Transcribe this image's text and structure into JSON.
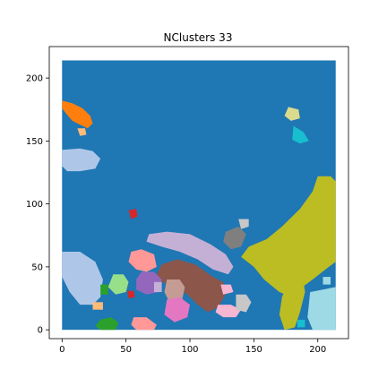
{
  "chart_data": {
    "type": "heatmap",
    "title": "NClusters 33",
    "xlabel": "",
    "ylabel": "",
    "xlim": [
      -10,
      224
    ],
    "ylim": [
      -7,
      225
    ],
    "xticks": [
      0,
      50,
      100,
      150,
      200
    ],
    "yticks": [
      0,
      50,
      100,
      150,
      200
    ],
    "grid": false,
    "image_extent": [
      0,
      214,
      0,
      214
    ],
    "background_cluster": {
      "color": "#1f77b4"
    },
    "clusters": [
      {
        "label": "orange",
        "color": "#ff7f0e",
        "polygon": [
          [
            0,
            182
          ],
          [
            8,
            180
          ],
          [
            16,
            176
          ],
          [
            22,
            170
          ],
          [
            24,
            164
          ],
          [
            20,
            160
          ],
          [
            14,
            163
          ],
          [
            8,
            166
          ],
          [
            3,
            172
          ],
          [
            0,
            176
          ]
        ]
      },
      {
        "label": "light-orange",
        "color": "#ffbb78",
        "polygon": [
          [
            12,
            160
          ],
          [
            18,
            160
          ],
          [
            19,
            155
          ],
          [
            14,
            154
          ]
        ]
      },
      {
        "label": "light-blue",
        "color": "#aec7e8",
        "polygon": [
          [
            0,
            143
          ],
          [
            14,
            144
          ],
          [
            24,
            142
          ],
          [
            30,
            136
          ],
          [
            26,
            128
          ],
          [
            14,
            126
          ],
          [
            4,
            126
          ],
          [
            0,
            130
          ]
        ]
      },
      {
        "label": "light-blue-2",
        "color": "#aec7e8",
        "polygon": [
          [
            0,
            62
          ],
          [
            14,
            62
          ],
          [
            26,
            54
          ],
          [
            32,
            40
          ],
          [
            30,
            26
          ],
          [
            24,
            20
          ],
          [
            14,
            20
          ],
          [
            6,
            30
          ],
          [
            0,
            42
          ]
        ]
      },
      {
        "label": "khaki",
        "color": "#dbdb8d",
        "polygon": [
          [
            177,
            177
          ],
          [
            185,
            175
          ],
          [
            186,
            168
          ],
          [
            179,
            166
          ],
          [
            174,
            170
          ]
        ]
      },
      {
        "label": "cyan",
        "color": "#17becf",
        "polygon": [
          [
            181,
            162
          ],
          [
            189,
            157
          ],
          [
            193,
            150
          ],
          [
            186,
            148
          ],
          [
            180,
            151
          ]
        ]
      },
      {
        "label": "red",
        "color": "#d62728",
        "polygon": [
          [
            52,
            95
          ],
          [
            58,
            96
          ],
          [
            59,
            90
          ],
          [
            54,
            88
          ]
        ]
      },
      {
        "label": "red-2",
        "color": "#d62728",
        "polygon": [
          [
            51,
            31
          ],
          [
            56,
            31
          ],
          [
            57,
            26
          ],
          [
            52,
            25
          ]
        ]
      },
      {
        "label": "lavender",
        "color": "#c5b0d5",
        "polygon": [
          [
            68,
            76
          ],
          [
            82,
            78
          ],
          [
            100,
            76
          ],
          [
            116,
            68
          ],
          [
            128,
            60
          ],
          [
            134,
            50
          ],
          [
            130,
            44
          ],
          [
            118,
            48
          ],
          [
            106,
            56
          ],
          [
            92,
            62
          ],
          [
            78,
            66
          ],
          [
            66,
            70
          ]
        ]
      },
      {
        "label": "gray",
        "color": "#7f7f7f",
        "polygon": [
          [
            128,
            78
          ],
          [
            138,
            82
          ],
          [
            144,
            76
          ],
          [
            140,
            66
          ],
          [
            132,
            64
          ],
          [
            126,
            70
          ]
        ]
      },
      {
        "label": "light-gray",
        "color": "#c7c7c7",
        "polygon": [
          [
            138,
            88
          ],
          [
            146,
            88
          ],
          [
            146,
            82
          ],
          [
            140,
            80
          ]
        ]
      },
      {
        "label": "olive",
        "color": "#bcbd22",
        "polygon": [
          [
            214,
            118
          ],
          [
            210,
            122
          ],
          [
            200,
            122
          ],
          [
            196,
            110
          ],
          [
            186,
            96
          ],
          [
            172,
            82
          ],
          [
            160,
            72
          ],
          [
            146,
            66
          ],
          [
            140,
            58
          ],
          [
            150,
            50
          ],
          [
            158,
            40
          ],
          [
            170,
            30
          ],
          [
            180,
            26
          ],
          [
            188,
            34
          ],
          [
            196,
            40
          ],
          [
            206,
            48
          ],
          [
            214,
            54
          ]
        ]
      },
      {
        "label": "olive-2",
        "color": "#bcbd22",
        "polygon": [
          [
            180,
            40
          ],
          [
            188,
            44
          ],
          [
            190,
            30
          ],
          [
            186,
            14
          ],
          [
            182,
            2
          ],
          [
            174,
            0
          ],
          [
            170,
            12
          ],
          [
            172,
            26
          ],
          [
            176,
            36
          ]
        ]
      },
      {
        "label": "salmon",
        "color": "#ff9896",
        "polygon": [
          [
            54,
            62
          ],
          [
            62,
            64
          ],
          [
            72,
            60
          ],
          [
            74,
            50
          ],
          [
            66,
            46
          ],
          [
            58,
            48
          ],
          [
            52,
            54
          ]
        ]
      },
      {
        "label": "brown",
        "color": "#8c564b",
        "polygon": [
          [
            78,
            52
          ],
          [
            90,
            56
          ],
          [
            104,
            52
          ],
          [
            118,
            42
          ],
          [
            126,
            38
          ],
          [
            128,
            28
          ],
          [
            122,
            18
          ],
          [
            114,
            14
          ],
          [
            106,
            20
          ],
          [
            98,
            28
          ],
          [
            88,
            34
          ],
          [
            78,
            38
          ],
          [
            74,
            44
          ]
        ]
      },
      {
        "label": "purple",
        "color": "#9467bd",
        "polygon": [
          [
            62,
            46
          ],
          [
            72,
            46
          ],
          [
            78,
            40
          ],
          [
            76,
            30
          ],
          [
            66,
            28
          ],
          [
            58,
            32
          ],
          [
            58,
            40
          ]
        ]
      },
      {
        "label": "light-green",
        "color": "#98df8a",
        "polygon": [
          [
            40,
            44
          ],
          [
            48,
            44
          ],
          [
            52,
            38
          ],
          [
            50,
            30
          ],
          [
            42,
            28
          ],
          [
            36,
            34
          ]
        ]
      },
      {
        "label": "tan",
        "color": "#c49c94",
        "polygon": [
          [
            82,
            40
          ],
          [
            92,
            40
          ],
          [
            96,
            34
          ],
          [
            94,
            24
          ],
          [
            84,
            22
          ],
          [
            80,
            30
          ]
        ]
      },
      {
        "label": "pink",
        "color": "#e377c2",
        "polygon": [
          [
            82,
            24
          ],
          [
            92,
            26
          ],
          [
            100,
            20
          ],
          [
            98,
            10
          ],
          [
            88,
            6
          ],
          [
            80,
            12
          ]
        ]
      },
      {
        "label": "pink-2",
        "color": "#f7b6d2",
        "polygon": [
          [
            122,
            20
          ],
          [
            132,
            20
          ],
          [
            140,
            16
          ],
          [
            136,
            10
          ],
          [
            126,
            10
          ],
          [
            120,
            14
          ]
        ]
      },
      {
        "label": "pink-3",
        "color": "#f7b6d2",
        "polygon": [
          [
            124,
            36
          ],
          [
            132,
            36
          ],
          [
            134,
            30
          ],
          [
            126,
            28
          ]
        ]
      },
      {
        "label": "light-gray-2",
        "color": "#c7c7c7",
        "polygon": [
          [
            136,
            28
          ],
          [
            144,
            28
          ],
          [
            148,
            22
          ],
          [
            144,
            14
          ],
          [
            136,
            16
          ]
        ]
      },
      {
        "label": "green",
        "color": "#2ca02c",
        "polygon": [
          [
            30,
            8
          ],
          [
            38,
            10
          ],
          [
            44,
            6
          ],
          [
            42,
            0
          ],
          [
            30,
            0
          ],
          [
            26,
            3
          ]
        ]
      },
      {
        "label": "green-2",
        "color": "#2ca02c",
        "polygon": [
          [
            30,
            36
          ],
          [
            36,
            36
          ],
          [
            36,
            28
          ],
          [
            30,
            28
          ]
        ]
      },
      {
        "label": "peach",
        "color": "#ffbb78",
        "polygon": [
          [
            24,
            22
          ],
          [
            32,
            22
          ],
          [
            32,
            16
          ],
          [
            24,
            16
          ]
        ]
      },
      {
        "label": "pink-4",
        "color": "#ff9896",
        "polygon": [
          [
            56,
            10
          ],
          [
            66,
            10
          ],
          [
            74,
            4
          ],
          [
            72,
            0
          ],
          [
            58,
            0
          ],
          [
            54,
            4
          ]
        ]
      },
      {
        "label": "sky",
        "color": "#9edae5",
        "polygon": [
          [
            194,
            30
          ],
          [
            204,
            32
          ],
          [
            214,
            34
          ],
          [
            214,
            0
          ],
          [
            196,
            0
          ],
          [
            192,
            10
          ]
        ]
      },
      {
        "label": "sky-2",
        "color": "#9edae5",
        "polygon": [
          [
            204,
            42
          ],
          [
            210,
            42
          ],
          [
            210,
            36
          ],
          [
            204,
            36
          ]
        ]
      },
      {
        "label": "cyan-2",
        "color": "#17becf",
        "polygon": [
          [
            184,
            8
          ],
          [
            190,
            8
          ],
          [
            190,
            2
          ],
          [
            184,
            2
          ]
        ]
      },
      {
        "label": "violet-small",
        "color": "#c5b0d5",
        "polygon": [
          [
            72,
            38
          ],
          [
            78,
            38
          ],
          [
            78,
            30
          ],
          [
            72,
            30
          ]
        ]
      }
    ]
  }
}
